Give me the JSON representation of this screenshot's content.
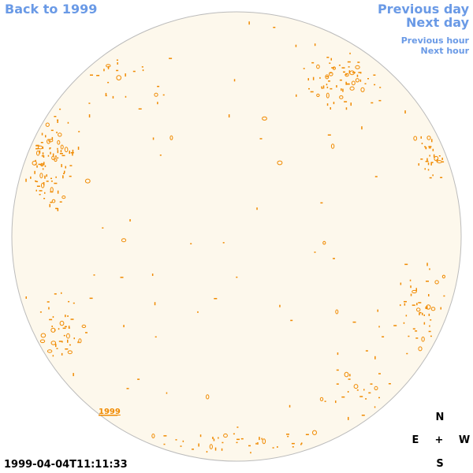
{
  "nav": {
    "back": "Back to 1999",
    "previous_day": "Previous day",
    "next_day": "Next day",
    "previous_hour": "Previous hour",
    "next_hour": "Next hour"
  },
  "timestamp": "1999-04-04T11:11:33",
  "year_label": "1999",
  "compass": {
    "north": "N",
    "east": "E",
    "center": "+",
    "west": "W",
    "south": "S"
  },
  "colors": {
    "disc_fill": "#fdf8ec",
    "disc_stroke": "#bbbbbb",
    "marker": "#f08a00",
    "link": "#6a9ae6"
  }
}
